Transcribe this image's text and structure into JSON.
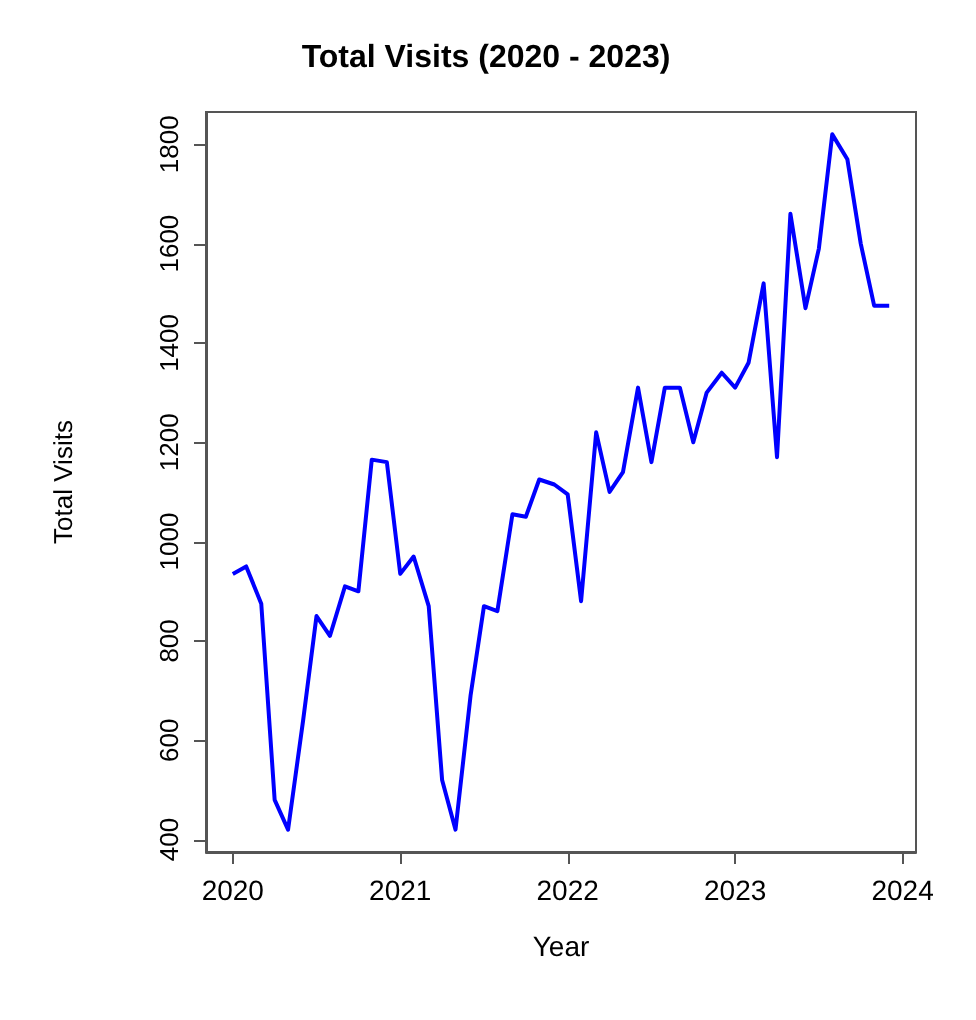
{
  "chart_data": {
    "type": "line",
    "title": "Total Visits (2020 - 2023)",
    "xlabel": "Year",
    "ylabel": "Total Visits",
    "x": [
      2020,
      2020.08,
      2020.17,
      2020.25,
      2020.33,
      2020.42,
      2020.5,
      2020.58,
      2020.67,
      2020.75,
      2020.83,
      2020.92,
      2021,
      2021.08,
      2021.17,
      2021.25,
      2021.33,
      2021.42,
      2021.5,
      2021.58,
      2021.67,
      2021.75,
      2021.83,
      2021.92,
      2022,
      2022.08,
      2022.17,
      2022.25,
      2022.33,
      2022.42,
      2022.5,
      2022.58,
      2022.67,
      2022.75,
      2022.83,
      2022.92,
      2023,
      2023.08,
      2023.17,
      2023.25,
      2023.33,
      2023.42,
      2023.5,
      2023.58,
      2023.67,
      2023.75,
      2023.83,
      2023.92
    ],
    "series": [
      {
        "color": "#0000ff",
        "values": [
          935,
          950,
          875,
          480,
          420,
          640,
          850,
          810,
          910,
          900,
          1165,
          1160,
          935,
          970,
          870,
          520,
          420,
          690,
          870,
          860,
          1055,
          1050,
          1125,
          1115,
          1095,
          880,
          1220,
          1100,
          1140,
          1310,
          1160,
          1310,
          1310,
          1200,
          1300,
          1340,
          1310,
          1360,
          1520,
          1170,
          1660,
          1470,
          1590,
          1820,
          1770,
          1600,
          1475,
          1475
        ]
      }
    ],
    "xlim": [
      2019.84,
      2024.08
    ],
    "xticks": [
      2020,
      2021,
      2022,
      2023,
      2024
    ],
    "ylim": [
      375,
      1865
    ],
    "yticks": [
      400,
      600,
      800,
      1000,
      1200,
      1400,
      1600,
      1800
    ],
    "grid": false,
    "marker": "none",
    "line_style": "solid"
  }
}
